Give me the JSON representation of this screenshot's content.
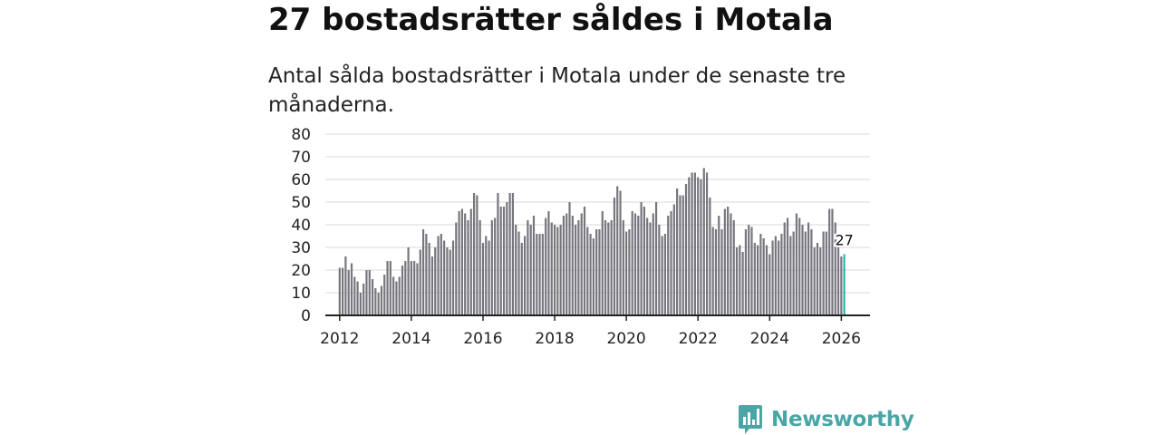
{
  "header": {
    "title": "27 bostadsrätter såldes i Motala",
    "subtitle": "Antal sålda bostadsrätter i Motala under de senaste tre månaderna."
  },
  "brand": {
    "name": "Newsworthy",
    "logo_icon": "newsworthy-chart-icon",
    "color": "#4aa6a6"
  },
  "colors": {
    "bar": "#76767d",
    "highlight": "#2bb3ad",
    "grid": "#d9d9d9",
    "axis": "#222222"
  },
  "chart_data": {
    "type": "bar",
    "title": "27 bostadsrätter såldes i Motala",
    "subtitle": "Antal sålda bostadsrätter i Motala under de senaste tre månaderna.",
    "xlabel": "",
    "ylabel": "",
    "x_start": 2012.0,
    "x_step": 0.08333,
    "xlim": [
      2011.6,
      2026.8
    ],
    "ylim": [
      0,
      80
    ],
    "yticks": [
      "0",
      "10",
      "20",
      "30",
      "40",
      "50",
      "60",
      "70",
      "80"
    ],
    "xticks": [
      "2012",
      "2014",
      "2016",
      "2018",
      "2020",
      "2022",
      "2024",
      "2026"
    ],
    "grid": true,
    "values": [
      21,
      21,
      26,
      20,
      23,
      17,
      15,
      10,
      14,
      20,
      20,
      16,
      12,
      10,
      13,
      18,
      24,
      24,
      17,
      15,
      17,
      22,
      24,
      30,
      24,
      24,
      23,
      29,
      38,
      36,
      32,
      26,
      30,
      35,
      36,
      33,
      30,
      29,
      33,
      41,
      46,
      47,
      45,
      42,
      47,
      54,
      53,
      42,
      32,
      35,
      33,
      42,
      43,
      54,
      48,
      48,
      50,
      54,
      54,
      40,
      37,
      32,
      35,
      42,
      40,
      44,
      36,
      36,
      36,
      43,
      46,
      41,
      40,
      39,
      40,
      44,
      45,
      50,
      44,
      40,
      42,
      45,
      48,
      39,
      36,
      34,
      38,
      38,
      46,
      42,
      41,
      42,
      52,
      57,
      55,
      42,
      37,
      38,
      46,
      45,
      44,
      50,
      48,
      43,
      41,
      45,
      50,
      40,
      35,
      36,
      44,
      46,
      49,
      56,
      53,
      53,
      58,
      61,
      63,
      63,
      61,
      60,
      65,
      63,
      52,
      39,
      38,
      44,
      38,
      47,
      48,
      45,
      42,
      30,
      31,
      28,
      38,
      40,
      39,
      32,
      31,
      36,
      34,
      31,
      27,
      33,
      35,
      33,
      36,
      41,
      43,
      35,
      37,
      45,
      43,
      40,
      37,
      41,
      38,
      30,
      32,
      30,
      37,
      37,
      47,
      47,
      41,
      30,
      26,
      27
    ],
    "highlight_last": true,
    "annotation": {
      "text": "27",
      "target": "last-bar"
    }
  }
}
